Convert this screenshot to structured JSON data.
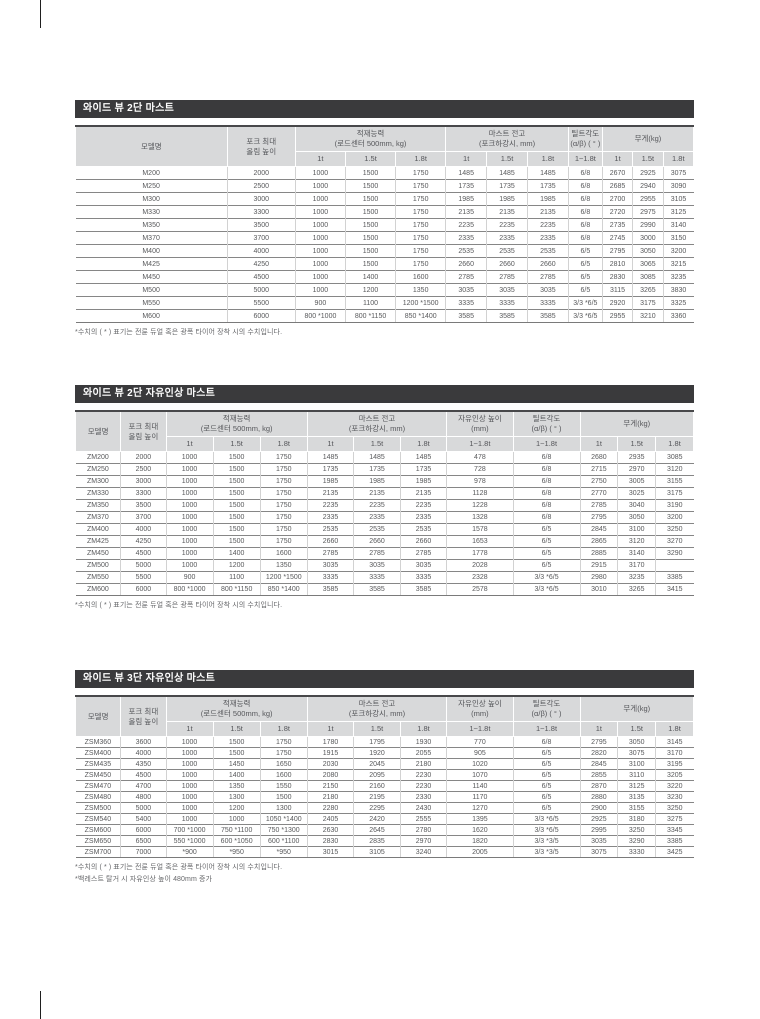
{
  "tables": [
    {
      "title": "와이드 뷰 2단 마스트",
      "columns": [
        {
          "label": "모델명"
        },
        {
          "label": "포크 최대\n올림 높이"
        },
        {
          "label": "적재능력\n(로드센터 500mm, kg)",
          "sub": [
            "1t",
            "1.5t",
            "1.8t"
          ]
        },
        {
          "label": "마스트 전고\n(포크하강시, mm)",
          "sub": [
            "1t",
            "1.5t",
            "1.8t"
          ]
        },
        {
          "label": "틸트각도\n(α/β) ( ° )",
          "sub": [
            "1~1.8t"
          ]
        },
        {
          "label": "무게(kg)",
          "sub": [
            "1t",
            "1.5t",
            "1.8t"
          ]
        }
      ],
      "rows": [
        [
          "M200",
          "2000",
          "1000",
          "1500",
          "1750",
          "1485",
          "1485",
          "1485",
          "6/8",
          "2670",
          "2925",
          "3075"
        ],
        [
          "M250",
          "2500",
          "1000",
          "1500",
          "1750",
          "1735",
          "1735",
          "1735",
          "6/8",
          "2685",
          "2940",
          "3090"
        ],
        [
          "M300",
          "3000",
          "1000",
          "1500",
          "1750",
          "1985",
          "1985",
          "1985",
          "6/8",
          "2700",
          "2955",
          "3105"
        ],
        [
          "M330",
          "3300",
          "1000",
          "1500",
          "1750",
          "2135",
          "2135",
          "2135",
          "6/8",
          "2720",
          "2975",
          "3125"
        ],
        [
          "M350",
          "3500",
          "1000",
          "1500",
          "1750",
          "2235",
          "2235",
          "2235",
          "6/8",
          "2735",
          "2990",
          "3140"
        ],
        [
          "M370",
          "3700",
          "1000",
          "1500",
          "1750",
          "2335",
          "2335",
          "2335",
          "6/8",
          "2745",
          "3000",
          "3150"
        ],
        [
          "M400",
          "4000",
          "1000",
          "1500",
          "1750",
          "2535",
          "2535",
          "2535",
          "6/5",
          "2795",
          "3050",
          "3200"
        ],
        [
          "M425",
          "4250",
          "1000",
          "1500",
          "1750",
          "2660",
          "2660",
          "2660",
          "6/5",
          "2810",
          "3065",
          "3215"
        ],
        [
          "M450",
          "4500",
          "1000",
          "1400",
          "1600",
          "2785",
          "2785",
          "2785",
          "6/5",
          "2830",
          "3085",
          "3235"
        ],
        [
          "M500",
          "5000",
          "1000",
          "1200",
          "1350",
          "3035",
          "3035",
          "3035",
          "6/5",
          "3115",
          "3265",
          "3830"
        ],
        [
          "M550",
          "5500",
          "900",
          "1100",
          "1200 *1500",
          "3335",
          "3335",
          "3335",
          "3/3 *6/5",
          "2920",
          "3175",
          "3325"
        ],
        [
          "M600",
          "6000",
          "800 *1000",
          "800 *1150",
          "850 *1400",
          "3585",
          "3585",
          "3585",
          "3/3 *6/5",
          "2955",
          "3210",
          "3360"
        ]
      ],
      "footnotes": [
        "*수치의 ( * ) 표기는 전륜 듀얼 혹은 광폭 타이어 장착 시의 수치입니다."
      ]
    },
    {
      "title": "와이드 뷰 2단 자유인상 마스트",
      "columns": [
        {
          "label": "모델명"
        },
        {
          "label": "포크 최대\n올림 높이"
        },
        {
          "label": "적재능력\n(로드센터 500mm, kg)",
          "sub": [
            "1t",
            "1.5t",
            "1.8t"
          ]
        },
        {
          "label": "마스트 전고\n(포크하강시, mm)",
          "sub": [
            "1t",
            "1.5t",
            "1.8t"
          ]
        },
        {
          "label": "자유인상 높이\n(mm)",
          "sub": [
            "1~1.8t"
          ]
        },
        {
          "label": "틸트각도\n(α/β) ( ° )",
          "sub": [
            "1~1.8t"
          ]
        },
        {
          "label": "무게(kg)",
          "sub": [
            "1t",
            "1.5t",
            "1.8t"
          ]
        }
      ],
      "rows": [
        [
          "ZM200",
          "2000",
          "1000",
          "1500",
          "1750",
          "1485",
          "1485",
          "1485",
          "478",
          "6/8",
          "2680",
          "2935",
          "3085"
        ],
        [
          "ZM250",
          "2500",
          "1000",
          "1500",
          "1750",
          "1735",
          "1735",
          "1735",
          "728",
          "6/8",
          "2715",
          "2970",
          "3120"
        ],
        [
          "ZM300",
          "3000",
          "1000",
          "1500",
          "1750",
          "1985",
          "1985",
          "1985",
          "978",
          "6/8",
          "2750",
          "3005",
          "3155"
        ],
        [
          "ZM330",
          "3300",
          "1000",
          "1500",
          "1750",
          "2135",
          "2135",
          "2135",
          "1128",
          "6/8",
          "2770",
          "3025",
          "3175"
        ],
        [
          "ZM350",
          "3500",
          "1000",
          "1500",
          "1750",
          "2235",
          "2235",
          "2235",
          "1228",
          "6/8",
          "2785",
          "3040",
          "3190"
        ],
        [
          "ZM370",
          "3700",
          "1000",
          "1500",
          "1750",
          "2335",
          "2335",
          "2335",
          "1328",
          "6/8",
          "2795",
          "3050",
          "3200"
        ],
        [
          "ZM400",
          "4000",
          "1000",
          "1500",
          "1750",
          "2535",
          "2535",
          "2535",
          "1578",
          "6/5",
          "2845",
          "3100",
          "3250"
        ],
        [
          "ZM425",
          "4250",
          "1000",
          "1500",
          "1750",
          "2660",
          "2660",
          "2660",
          "1653",
          "6/5",
          "2865",
          "3120",
          "3270"
        ],
        [
          "ZM450",
          "4500",
          "1000",
          "1400",
          "1600",
          "2785",
          "2785",
          "2785",
          "1778",
          "6/5",
          "2885",
          "3140",
          "3290"
        ],
        [
          "ZM500",
          "5000",
          "1000",
          "1200",
          "1350",
          "3035",
          "3035",
          "3035",
          "2028",
          "6/5",
          "2915",
          "3170",
          ""
        ],
        [
          "ZM550",
          "5500",
          "900",
          "1100",
          "1200 *1500",
          "3335",
          "3335",
          "3335",
          "2328",
          "3/3 *6/5",
          "2980",
          "3235",
          "3385"
        ],
        [
          "ZM600",
          "6000",
          "800 *1000",
          "800 *1150",
          "850 *1400",
          "3585",
          "3585",
          "3585",
          "2578",
          "3/3 *6/5",
          "3010",
          "3265",
          "3415"
        ]
      ],
      "footnotes": [
        "*수치의 ( * ) 표기는 전륜 듀얼 혹은 광폭 타이어 장착 시의 수치입니다."
      ]
    },
    {
      "title": "와이드 뷰 3단 자유인상 마스트",
      "columns": [
        {
          "label": "모델명"
        },
        {
          "label": "포크 최대\n올림 높이"
        },
        {
          "label": "적재능력\n(로드센터 500mm, kg)",
          "sub": [
            "1t",
            "1.5t",
            "1.8t"
          ]
        },
        {
          "label": "마스트 전고\n(포크하강시, mm)",
          "sub": [
            "1t",
            "1.5t",
            "1.8t"
          ]
        },
        {
          "label": "자유인상 높이\n(mm)",
          "sub": [
            "1~1.8t"
          ]
        },
        {
          "label": "틸트각도\n(α/β) ( ° )",
          "sub": [
            "1~1.8t"
          ]
        },
        {
          "label": "무게(kg)",
          "sub": [
            "1t",
            "1.5t",
            "1.8t"
          ]
        }
      ],
      "rows": [
        [
          "ZSM360",
          "3600",
          "1000",
          "1500",
          "1750",
          "1780",
          "1795",
          "1930",
          "770",
          "6/8",
          "2795",
          "3050",
          "3145"
        ],
        [
          "ZSM400",
          "4000",
          "1000",
          "1500",
          "1750",
          "1915",
          "1920",
          "2055",
          "905",
          "6/5",
          "2820",
          "3075",
          "3170"
        ],
        [
          "ZSM435",
          "4350",
          "1000",
          "1450",
          "1650",
          "2030",
          "2045",
          "2180",
          "1020",
          "6/5",
          "2845",
          "3100",
          "3195"
        ],
        [
          "ZSM450",
          "4500",
          "1000",
          "1400",
          "1600",
          "2080",
          "2095",
          "2230",
          "1070",
          "6/5",
          "2855",
          "3110",
          "3205"
        ],
        [
          "ZSM470",
          "4700",
          "1000",
          "1350",
          "1550",
          "2150",
          "2160",
          "2230",
          "1140",
          "6/5",
          "2870",
          "3125",
          "3220"
        ],
        [
          "ZSM480",
          "4800",
          "1000",
          "1300",
          "1500",
          "2180",
          "2195",
          "2330",
          "1170",
          "6/5",
          "2880",
          "3135",
          "3230"
        ],
        [
          "ZSM500",
          "5000",
          "1000",
          "1200",
          "1300",
          "2280",
          "2295",
          "2430",
          "1270",
          "6/5",
          "2900",
          "3155",
          "3250"
        ],
        [
          "ZSM540",
          "5400",
          "1000",
          "1000",
          "1050 *1400",
          "2405",
          "2420",
          "2555",
          "1395",
          "3/3 *6/5",
          "2925",
          "3180",
          "3275"
        ],
        [
          "ZSM600",
          "6000",
          "700 *1000",
          "750 *1100",
          "750 *1300",
          "2630",
          "2645",
          "2780",
          "1620",
          "3/3 *6/5",
          "2995",
          "3250",
          "3345"
        ],
        [
          "ZSM650",
          "6500",
          "550 *1000",
          "600 *1050",
          "600 *1100",
          "2830",
          "2835",
          "2970",
          "1820",
          "3/3 *3/5",
          "3035",
          "3290",
          "3385"
        ],
        [
          "ZSM700",
          "7000",
          "*900",
          "*950",
          "*950",
          "3015",
          "3105",
          "3240",
          "2005",
          "3/3 *3/5",
          "3075",
          "3330",
          "3425"
        ]
      ],
      "footnotes": [
        "*수치의 ( * ) 표기는 전륜 듀얼 혹은 광폭 타이어 장착 시의 수치입니다.",
        "*백레스트 탈거 시 자유인상 높이 480mm 증가"
      ]
    }
  ]
}
